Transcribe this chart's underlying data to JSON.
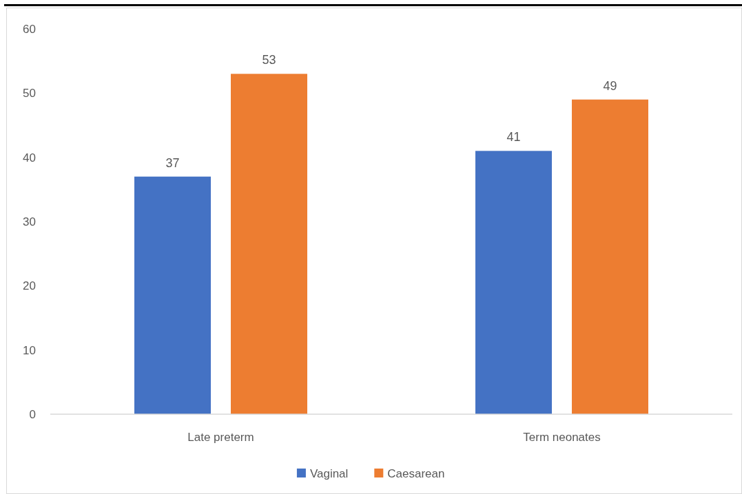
{
  "chart_data": {
    "type": "bar",
    "categories": [
      "Late preterm",
      "Term neonates"
    ],
    "series": [
      {
        "name": "Vaginal",
        "color": "#4472c4",
        "values": [
          37,
          41
        ]
      },
      {
        "name": "Caesarean",
        "color": "#ed7d31",
        "values": [
          53,
          49
        ]
      }
    ],
    "ylim": [
      0,
      60
    ],
    "yticks": [
      0,
      10,
      20,
      30,
      40,
      50,
      60
    ],
    "data_labels": true,
    "legend": "bottom"
  }
}
